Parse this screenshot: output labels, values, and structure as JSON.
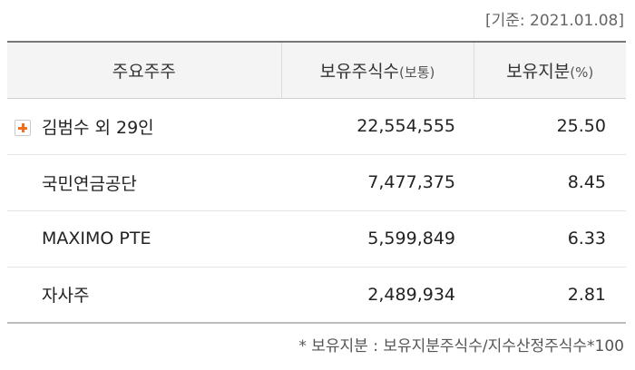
{
  "basis_date": "[기준: 2021.01.08]",
  "header": {
    "shareholder": "주요주주",
    "shares": "보유주식수",
    "shares_unit": "(보통)",
    "ratio": "보유지분",
    "ratio_unit": "(%)"
  },
  "rows": [
    {
      "name": "김범수 외 29인",
      "shares": "22,554,555",
      "ratio": "25.50"
    },
    {
      "name": "국민연금공단",
      "shares": "7,477,375",
      "ratio": "8.45"
    },
    {
      "name": "MAXIMO PTE",
      "shares": "5,599,849",
      "ratio": "6.33"
    },
    {
      "name": "자사주",
      "shares": "2,489,934",
      "ratio": "2.81"
    }
  ],
  "footnote": "* 보유지분 : 보유지분주식수/지수산정주식수*100",
  "colors": {
    "expand_icon": "#f07020",
    "header_bg": "#f4f4f4"
  },
  "icons": {
    "expand": "plus-icon"
  }
}
